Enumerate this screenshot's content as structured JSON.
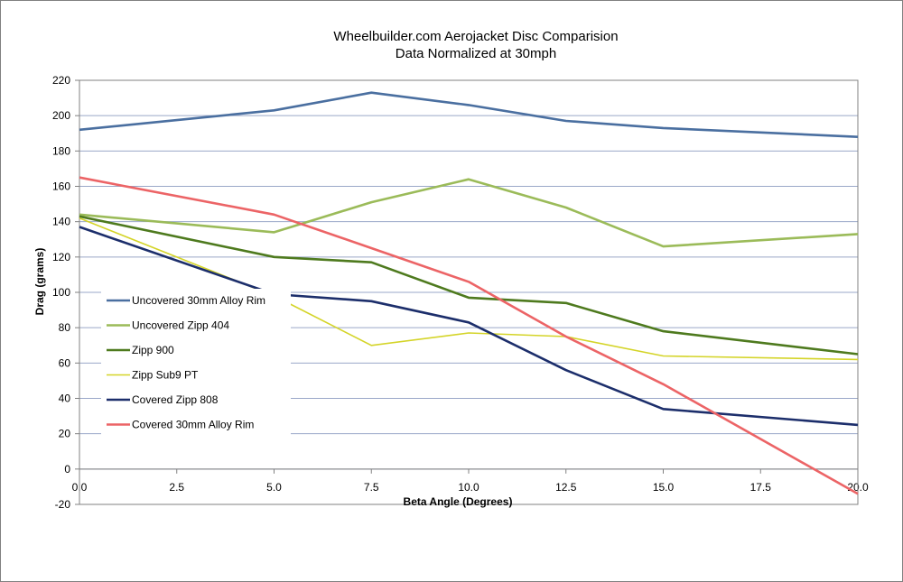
{
  "chart_data": {
    "type": "line",
    "title": "Wheelbuilder.com Aerojacket Disc Comparision",
    "subtitle": "Data Normalized at 30mph",
    "xlabel": "Beta Angle (Degrees)",
    "ylabel": "Drag (grams)",
    "xlim": [
      0,
      20
    ],
    "ylim": [
      -20,
      220
    ],
    "x_ticks": [
      0,
      2.5,
      5,
      7.5,
      10,
      12.5,
      15,
      17.5,
      20
    ],
    "x_tick_labels": [
      "0.0",
      "2.5",
      "5.0",
      "7.5",
      "10.0",
      "12.5",
      "15.0",
      "17.5",
      "20.0"
    ],
    "y_ticks": [
      -20,
      0,
      20,
      40,
      60,
      80,
      100,
      120,
      140,
      160,
      180,
      200,
      220
    ],
    "y_tick_labels": [
      "-20",
      "0",
      "20",
      "40",
      "60",
      "80",
      "100",
      "120",
      "140",
      "160",
      "180",
      "200",
      "220"
    ],
    "grid": true,
    "legend_position": "bottom-left",
    "x": [
      0,
      5,
      7.5,
      10,
      12.5,
      15,
      20
    ],
    "series": [
      {
        "name": "Uncovered 30mm Alloy Rim",
        "color": "#4a6fa0",
        "values": [
          192,
          203,
          213,
          206,
          197,
          193,
          188
        ]
      },
      {
        "name": "Uncovered Zipp 404",
        "color": "#9bbb59",
        "values": [
          144,
          134,
          151,
          164,
          148,
          126,
          133
        ]
      },
      {
        "name": "Zipp 900",
        "color": "#4e7a1e",
        "values": [
          143,
          120,
          117,
          97,
          94,
          78,
          65
        ]
      },
      {
        "name": "Zipp Sub9 PT",
        "color": "#d4d428",
        "values": [
          142,
          98,
          70,
          77,
          75,
          64,
          62
        ]
      },
      {
        "name": "Covered Zipp 808",
        "color": "#1c2e6b",
        "values": [
          137,
          99,
          95,
          83,
          56,
          34,
          25
        ]
      },
      {
        "name": "Covered 30mm Alloy Rim",
        "color": "#ec6466",
        "values": [
          165,
          144,
          125,
          106,
          75,
          48,
          -14
        ]
      }
    ]
  }
}
